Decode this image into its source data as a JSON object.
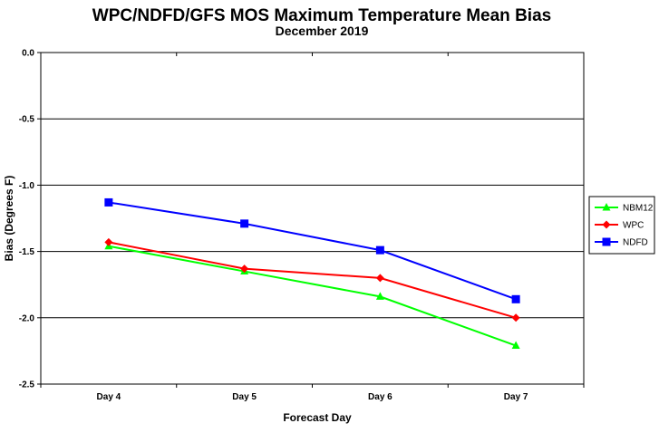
{
  "chart_data": {
    "type": "line",
    "title": "WPC/NDFD/GFS MOS Maximum Temperature Mean Bias",
    "subtitle": "December 2019",
    "xlabel": "Forecast Day",
    "ylabel": "Bias (Degrees F)",
    "categories": [
      "Day 4",
      "Day 5",
      "Day 6",
      "Day 7"
    ],
    "ylim": [
      -2.5,
      0.0
    ],
    "yticks": [
      "0.0",
      "-0.5",
      "-1.0",
      "-1.5",
      "-2.0",
      "-2.5"
    ],
    "ytick_values": [
      0.0,
      -0.5,
      -1.0,
      -1.5,
      -2.0,
      -2.5
    ],
    "grid": true,
    "legend_position": "right",
    "series": [
      {
        "name": "NBM12",
        "color": "#00ff00",
        "marker": "triangle",
        "values": [
          -1.46,
          -1.65,
          -1.84,
          -2.21
        ]
      },
      {
        "name": "WPC",
        "color": "#ff0000",
        "marker": "diamond",
        "values": [
          -1.43,
          -1.63,
          -1.7,
          -2.0
        ]
      },
      {
        "name": "NDFD",
        "color": "#0000ff",
        "marker": "square",
        "values": [
          -1.13,
          -1.29,
          -1.49,
          -1.86
        ]
      }
    ]
  }
}
